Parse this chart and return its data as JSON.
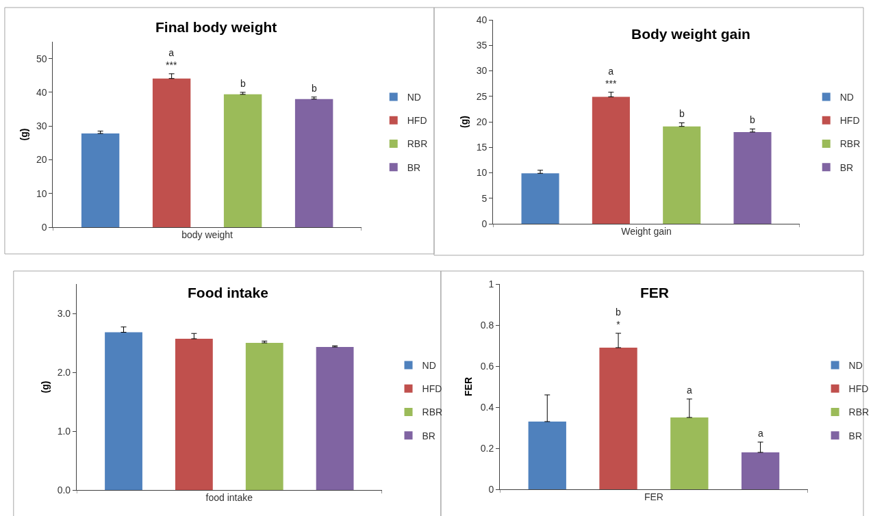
{
  "chart_data": [
    {
      "type": "bar",
      "title": "Final body weight",
      "ylabel": "(g)",
      "xlabel": "body weight",
      "categories": [
        null
      ],
      "ylim": [
        0,
        55
      ],
      "yticks": [
        0,
        10,
        20,
        30,
        40,
        50
      ],
      "legend": "right",
      "series": [
        {
          "name": "ND",
          "color": "#4f81bd",
          "values": [
            27.8
          ],
          "errors": [
            [
              27.8,
              28.5
            ]
          ]
        },
        {
          "name": "HFD",
          "color": "#c0504d",
          "values": [
            44.1
          ],
          "errors": [
            [
              44.1,
              45.5
            ]
          ],
          "value_labels": [
            "a\n***"
          ]
        },
        {
          "name": "RBR",
          "color": "#9bbb59",
          "values": [
            39.4
          ],
          "errors": [
            [
              39.4,
              40.0
            ]
          ],
          "value_labels": [
            "b"
          ]
        },
        {
          "name": "BR",
          "color": "#8064a2",
          "values": [
            38.0
          ],
          "errors": [
            [
              38.0,
              38.6
            ]
          ],
          "value_labels": [
            "b"
          ]
        }
      ]
    },
    {
      "type": "bar",
      "title": "Body weight gain",
      "ylabel": "(g)",
      "xlabel": "Weight gain",
      "categories": [
        null
      ],
      "ylim": [
        0,
        40
      ],
      "yticks": [
        0,
        5,
        10,
        15,
        20,
        25,
        30,
        35,
        40
      ],
      "legend": "right",
      "series": [
        {
          "name": "ND",
          "color": "#4f81bd",
          "values": [
            9.9
          ],
          "errors": [
            [
              9.9,
              10.5
            ]
          ]
        },
        {
          "name": "HFD",
          "color": "#c0504d",
          "values": [
            24.9
          ],
          "errors": [
            [
              24.9,
              25.8
            ]
          ],
          "value_labels": [
            "a\n***"
          ]
        },
        {
          "name": "RBR",
          "color": "#9bbb59",
          "values": [
            19.1
          ],
          "errors": [
            [
              19.1,
              19.8
            ]
          ],
          "value_labels": [
            "b"
          ]
        },
        {
          "name": "BR",
          "color": "#8064a2",
          "values": [
            18.0
          ],
          "errors": [
            [
              18.0,
              18.6
            ]
          ],
          "value_labels": [
            "b"
          ]
        }
      ]
    },
    {
      "type": "bar",
      "title": "Food intake",
      "ylabel": "(g)",
      "xlabel": "food intake",
      "categories": [
        null
      ],
      "ylim": [
        0,
        3.5
      ],
      "yticks": [
        {
          "value": 0,
          "label": "0.0"
        },
        {
          "value": 1,
          "label": "1.0"
        },
        {
          "value": 2,
          "label": "2.0"
        },
        {
          "value": 3,
          "label": "3.0"
        }
      ],
      "legend": "right",
      "series": [
        {
          "name": "ND",
          "color": "#4f81bd",
          "values": [
            2.68
          ],
          "errors": [
            [
              2.68,
              2.77
            ]
          ]
        },
        {
          "name": "HFD",
          "color": "#c0504d",
          "values": [
            2.57
          ],
          "errors": [
            [
              2.57,
              2.66
            ]
          ]
        },
        {
          "name": "RBR",
          "color": "#9bbb59",
          "values": [
            2.5
          ],
          "errors": [
            [
              2.5,
              2.53
            ]
          ]
        },
        {
          "name": "BR",
          "color": "#8064a2",
          "values": [
            2.43
          ],
          "errors": [
            [
              2.43,
              2.45
            ]
          ]
        }
      ]
    },
    {
      "type": "bar",
      "title": "FER",
      "ylabel": "FER",
      "xlabel": "FER",
      "categories": [
        null
      ],
      "ylim": [
        0,
        1
      ],
      "yticks": [
        0,
        0.2,
        0.4,
        0.6,
        0.8,
        1
      ],
      "legend": "right",
      "series": [
        {
          "name": "ND",
          "color": "#4f81bd",
          "values": [
            0.33
          ],
          "errors": [
            [
              0.33,
              0.46
            ]
          ]
        },
        {
          "name": "HFD",
          "color": "#c0504d",
          "values": [
            0.69
          ],
          "errors": [
            [
              0.69,
              0.76
            ]
          ],
          "value_labels": [
            "b\n*"
          ]
        },
        {
          "name": "RBR",
          "color": "#9bbb59",
          "values": [
            0.35
          ],
          "errors": [
            [
              0.35,
              0.44
            ]
          ],
          "value_labels": [
            "a"
          ]
        },
        {
          "name": "BR",
          "color": "#8064a2",
          "values": [
            0.18
          ],
          "errors": [
            [
              0.18,
              0.23
            ]
          ],
          "value_labels": [
            "a"
          ]
        }
      ]
    }
  ]
}
